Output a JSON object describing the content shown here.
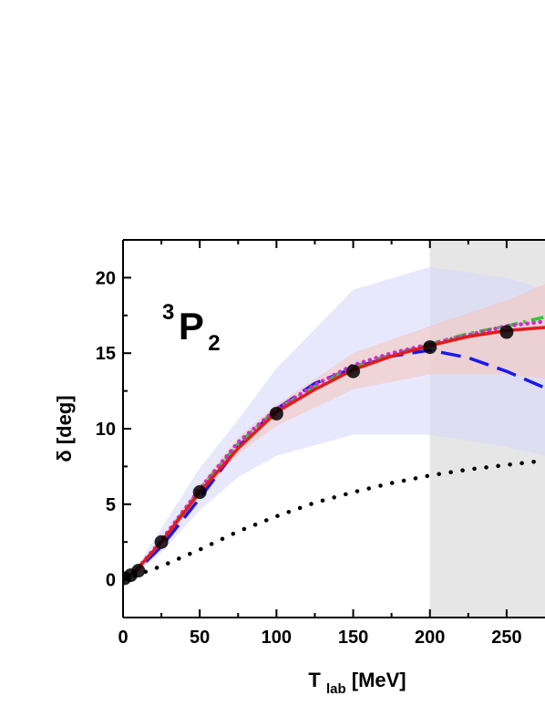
{
  "chart_data": {
    "type": "line",
    "title": "",
    "annotation": {
      "sup": "3",
      "main": "P",
      "sub": "2"
    },
    "xlabel": {
      "main": "T",
      "sub": "lab",
      "unit": " [MeV]"
    },
    "ylabel": "δ [deg]",
    "xlim": [
      0,
      275
    ],
    "ylim": [
      -2.5,
      22.5
    ],
    "xticks": [
      0,
      50,
      100,
      150,
      200,
      250
    ],
    "yticks": [
      0,
      5,
      10,
      15,
      20
    ],
    "grid": false,
    "legend": "none",
    "shaded_region": {
      "x_from": 200,
      "x_to": 275,
      "color": "#e6e6e6"
    },
    "bands": [
      {
        "color": "#d9d9fb",
        "x": [
          1,
          10,
          25,
          50,
          75,
          100,
          150,
          200,
          250,
          275
        ],
        "lower": [
          0.1,
          0.5,
          1.8,
          4.6,
          6.8,
          8.2,
          9.6,
          9.6,
          8.8,
          8.2
        ],
        "upper": [
          0.3,
          1.0,
          3.4,
          7.4,
          10.6,
          14.0,
          19.2,
          20.7,
          20.0,
          19.2
        ]
      },
      {
        "color": "#f4c7c0",
        "x": [
          1,
          10,
          25,
          50,
          75,
          100,
          150,
          200,
          250,
          275
        ],
        "lower": [
          0.15,
          0.6,
          2.3,
          5.5,
          8.3,
          10.2,
          12.6,
          13.6,
          13.6,
          13.3
        ],
        "upper": [
          0.25,
          0.8,
          2.8,
          6.3,
          9.4,
          11.6,
          15.0,
          16.8,
          18.5,
          19.6
        ]
      }
    ],
    "series": [
      {
        "color": "#1a1ae6",
        "style": "dashed",
        "x": [
          0,
          5,
          10,
          25,
          50,
          75,
          100,
          125,
          150,
          175,
          200,
          225,
          250,
          275
        ],
        "y": [
          0.0,
          0.3,
          0.7,
          2.2,
          5.4,
          8.8,
          11.3,
          13.0,
          14.0,
          14.8,
          15.2,
          14.7,
          13.8,
          12.7
        ]
      },
      {
        "color": "#2ccc2c",
        "style": "dash-dot",
        "x": [
          0,
          5,
          10,
          25,
          50,
          75,
          100,
          125,
          150,
          175,
          200,
          225,
          250,
          275
        ],
        "y": [
          0.0,
          0.3,
          0.8,
          2.5,
          6.0,
          9.0,
          11.3,
          12.8,
          14.1,
          14.9,
          15.6,
          16.3,
          16.8,
          17.4
        ]
      },
      {
        "color": "#d12ad1",
        "style": "dotted",
        "x": [
          0,
          5,
          10,
          25,
          50,
          75,
          100,
          125,
          150,
          175,
          200,
          225,
          250,
          275
        ],
        "y": [
          0.0,
          0.3,
          0.8,
          2.6,
          6.0,
          9.1,
          11.3,
          12.9,
          14.2,
          15.0,
          15.6,
          16.2,
          16.8,
          17.1
        ]
      },
      {
        "color": "#e61a1a",
        "style": "solid",
        "x": [
          0,
          5,
          10,
          25,
          50,
          75,
          100,
          125,
          150,
          175,
          200,
          225,
          250,
          275
        ],
        "y": [
          0.0,
          0.3,
          0.8,
          2.5,
          5.8,
          8.7,
          11.1,
          12.6,
          13.9,
          14.8,
          15.5,
          16.1,
          16.5,
          16.7
        ]
      },
      {
        "color": "#000000",
        "style": "dotted-sparse",
        "x": [
          0,
          25,
          50,
          75,
          100,
          125,
          150,
          175,
          200,
          225,
          250,
          275
        ],
        "y": [
          0.0,
          0.9,
          2.0,
          3.2,
          4.2,
          5.1,
          5.8,
          6.4,
          6.9,
          7.3,
          7.6,
          7.9
        ]
      }
    ],
    "points": {
      "color": "#000000",
      "x": [
        1,
        5,
        10,
        25,
        50,
        100,
        150,
        200,
        250
      ],
      "y": [
        0.1,
        0.3,
        0.6,
        2.5,
        5.8,
        11.0,
        13.8,
        15.4,
        16.4
      ]
    }
  }
}
